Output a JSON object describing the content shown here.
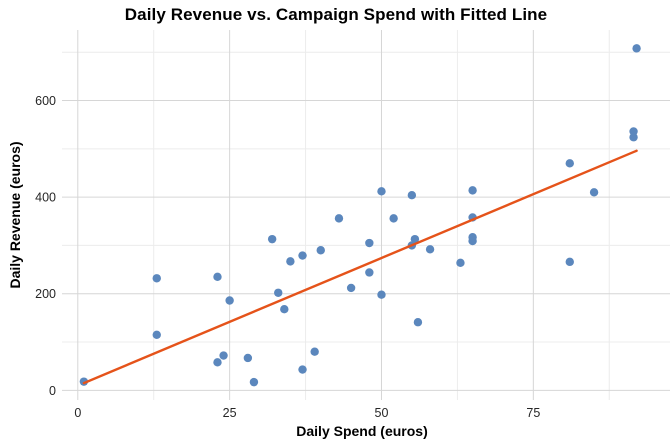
{
  "chart_data": {
    "type": "scatter",
    "title": "Daily Revenue vs. Campaign Spend with Fitted Line",
    "xlabel": "Daily Spend (euros)",
    "ylabel": "Daily Revenue (euros)",
    "xlim": [
      -2.6,
      97.5
    ],
    "ylim": [
      -20,
      746
    ],
    "x_ticks": [
      0,
      25,
      50,
      75
    ],
    "x_minor_ticks": [
      12.5,
      37.5,
      62.5,
      87.5
    ],
    "y_ticks": [
      0,
      200,
      400,
      600
    ],
    "y_minor_ticks": [
      100,
      300,
      500,
      700
    ],
    "grid": true,
    "legend": false,
    "points": [
      [
        1,
        18
      ],
      [
        13,
        115
      ],
      [
        13,
        232
      ],
      [
        23,
        58
      ],
      [
        23,
        235
      ],
      [
        24,
        72
      ],
      [
        25,
        186
      ],
      [
        28,
        67
      ],
      [
        29,
        17
      ],
      [
        32,
        313
      ],
      [
        33,
        202
      ],
      [
        34,
        168
      ],
      [
        35,
        267
      ],
      [
        37,
        279
      ],
      [
        37,
        43
      ],
      [
        39,
        80
      ],
      [
        40,
        290
      ],
      [
        43,
        356
      ],
      [
        45,
        212
      ],
      [
        48,
        244
      ],
      [
        48,
        305
      ],
      [
        50,
        198
      ],
      [
        50,
        412
      ],
      [
        52,
        356
      ],
      [
        55,
        300
      ],
      [
        55,
        404
      ],
      [
        55.5,
        313
      ],
      [
        56,
        141
      ],
      [
        58,
        292
      ],
      [
        63,
        264
      ],
      [
        65,
        309
      ],
      [
        65,
        317
      ],
      [
        65,
        358
      ],
      [
        65,
        414
      ],
      [
        81,
        266
      ],
      [
        81,
        470
      ],
      [
        85,
        410
      ],
      [
        91.5,
        524
      ],
      [
        91.5,
        536
      ],
      [
        92,
        708
      ]
    ],
    "fit_line": {
      "x": [
        1,
        92
      ],
      "y": [
        15,
        496
      ]
    },
    "colors": {
      "point": "#5b87bd",
      "line": "#e5531a",
      "grid_major": "#d6d6d6",
      "grid_minor": "#ececec",
      "background": "#ffffff",
      "text": "#262626"
    }
  }
}
